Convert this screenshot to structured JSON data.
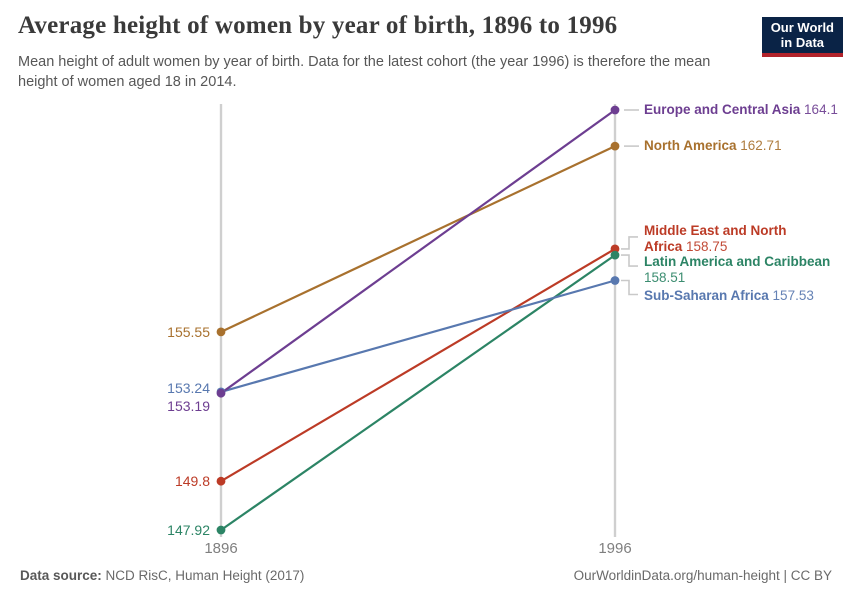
{
  "header": {
    "subtitle_lines": [
      "Mean height of adult women by year of birth. Data for the latest cohort (the year 1996) is therefore the mean",
      "height of women aged 18 in 2014."
    ],
    "logo": {
      "lines": [
        "Our World",
        "in Data"
      ],
      "bg_color": "#0A2346",
      "stripe_color": "#B2232B"
    }
  },
  "chart_data": {
    "type": "line",
    "subtype": "slope",
    "title": "Average height of women by year of birth, 1896 to 1996",
    "x": [
      1896,
      1996
    ],
    "x_tick_labels": [
      "1896",
      "1996"
    ],
    "ylabel": "",
    "ylim": [
      147.92,
      164.1
    ],
    "grid": "vertical-only",
    "legend_position": "right-inline",
    "series": [
      {
        "name": "Europe and Central Asia",
        "color": "#6D3E91",
        "values": [
          153.19,
          164.1
        ],
        "start_label": "153.19",
        "end_value": "164.1",
        "end_label_lines": [
          "Europe and Central Asia 164.1"
        ],
        "layout": {
          "start_dy": 13,
          "end_dy": -8,
          "attach_dy": 0
        }
      },
      {
        "name": "North America",
        "color": "#A8712E",
        "values": [
          155.55,
          162.71
        ],
        "start_label": "155.55",
        "end_value": "162.71",
        "end_label_lines": [
          "North America 162.71"
        ],
        "layout": {
          "start_dy": 0,
          "end_dy": -8,
          "attach_dy": 0
        }
      },
      {
        "name": "Middle East and North Africa",
        "color": "#BC3B26",
        "values": [
          149.8,
          158.75
        ],
        "start_label": "149.8",
        "end_value": "158.75",
        "end_label_lines": [
          "Middle East and North",
          "Africa 158.75"
        ],
        "layout": {
          "start_dy": 0,
          "end_dy": -26,
          "attach_dy": -12
        }
      },
      {
        "name": "Latin America and Caribbean",
        "color": "#2C8465",
        "values": [
          147.92,
          158.51
        ],
        "start_label": "147.92",
        "end_value": "158.51",
        "end_label_lines": [
          "Latin America and Caribbean",
          "158.51"
        ],
        "layout": {
          "start_dy": 0,
          "end_dy": -1,
          "attach_dy": 11
        }
      },
      {
        "name": "Sub-Saharan Africa",
        "color": "#5878AF",
        "values": [
          153.24,
          157.53
        ],
        "start_label": "153.24",
        "end_value": "157.53",
        "end_label_lines": [
          "Sub-Saharan Africa 157.53"
        ],
        "layout": {
          "start_dy": -4,
          "end_dy": 7,
          "attach_dy": 14
        }
      }
    ]
  },
  "footer": {
    "source_label": "Data source:",
    "source_text": "NCD RisC, Human Height (2017)",
    "credit_text": "OurWorldinData.org/human-height | CC BY"
  }
}
